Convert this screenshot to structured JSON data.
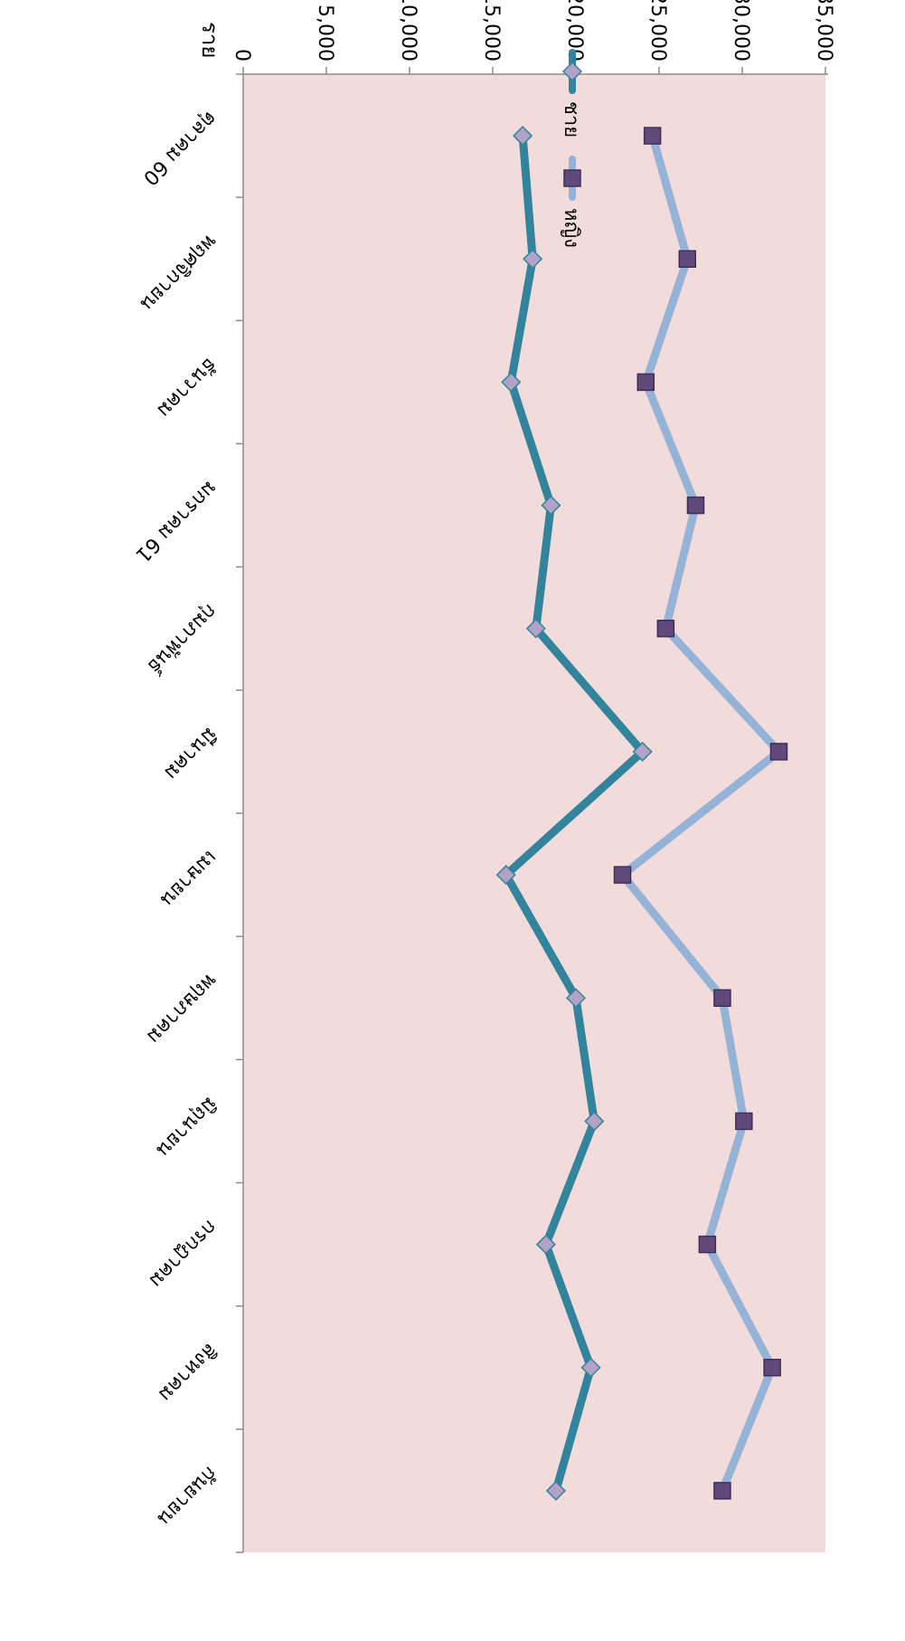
{
  "chart_data": {
    "type": "line",
    "orientation": "rotated-90-clockwise",
    "ylabel": "ราย",
    "ylim": [
      0,
      35000
    ],
    "yticks": [
      "0",
      "5,000",
      "10,000",
      "15,000",
      "20,000",
      "25,000",
      "30,000",
      "35,000"
    ],
    "grid": false,
    "legend_position": "top-right",
    "plot_background": "#F2DCDB",
    "categories": [
      "ตุลาคม 60",
      "พฤศจิกายน",
      "ธันวาคม",
      "มกราคม 61",
      "กุมภาพันธ์",
      "มีนาคม",
      "เมษายน",
      "พฤษภาคม",
      "มิถุนายน",
      "กรกฎาคม",
      "สิงหาคม",
      "กันยายน"
    ],
    "series": [
      {
        "name": "ชาย",
        "color": "#31849B",
        "marker": "diamond",
        "marker_color": "#B3A2C7",
        "values": [
          16800,
          17400,
          16100,
          18500,
          17600,
          24000,
          15800,
          20000,
          21100,
          18200,
          20900,
          18800
        ]
      },
      {
        "name": "หญิง",
        "color": "#95B3D7",
        "marker": "square",
        "marker_color": "#604A7B",
        "values": [
          24600,
          26700,
          24200,
          27200,
          25400,
          32200,
          22800,
          28800,
          30100,
          27900,
          31800,
          28800
        ]
      }
    ]
  }
}
